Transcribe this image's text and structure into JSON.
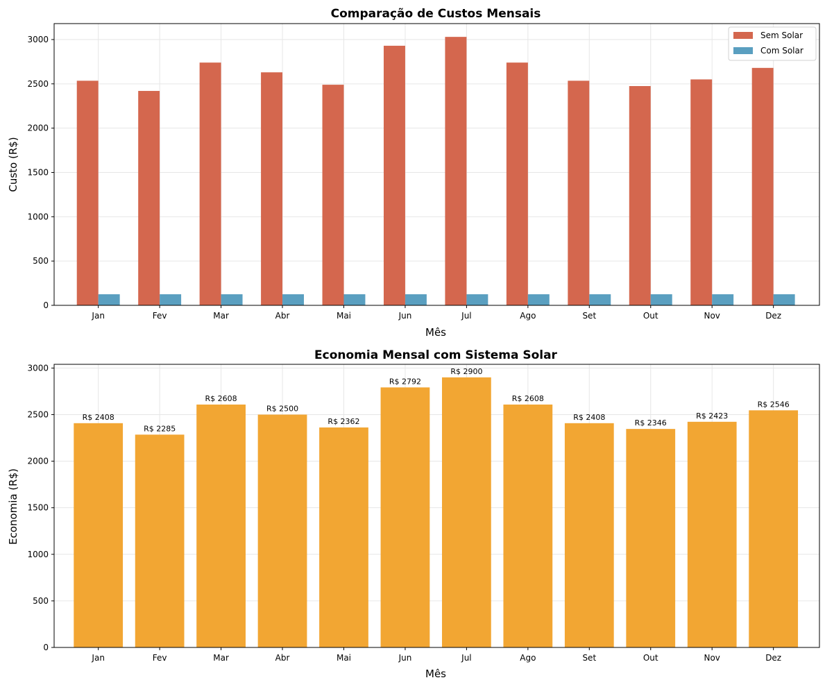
{
  "chart_data": [
    {
      "type": "bar",
      "title": "Comparação de Custos Mensais",
      "xlabel": "Mês",
      "ylabel": "Custo (R$)",
      "categories": [
        "Jan",
        "Fev",
        "Mar",
        "Abr",
        "Mai",
        "Jun",
        "Jul",
        "Ago",
        "Set",
        "Out",
        "Nov",
        "Dez"
      ],
      "series": [
        {
          "name": "Sem Solar",
          "color": "#d4674e",
          "values": [
            2535,
            2420,
            2740,
            2630,
            2490,
            2930,
            3030,
            2740,
            2535,
            2475,
            2550,
            2680
          ]
        },
        {
          "name": "Com Solar",
          "color": "#5a9fc0",
          "values": [
            125,
            125,
            125,
            125,
            125,
            125,
            125,
            125,
            125,
            125,
            125,
            125
          ]
        }
      ],
      "ylim": [
        0,
        3180
      ],
      "yticks": [
        0,
        500,
        1000,
        1500,
        2000,
        2500,
        3000
      ],
      "grid": true,
      "legend": "top-right"
    },
    {
      "type": "bar",
      "title": "Economia Mensal com Sistema Solar",
      "xlabel": "Mês",
      "ylabel": "Economia (R$)",
      "categories": [
        "Jan",
        "Fev",
        "Mar",
        "Abr",
        "Mai",
        "Jun",
        "Jul",
        "Ago",
        "Set",
        "Out",
        "Nov",
        "Dez"
      ],
      "series": [
        {
          "name": "",
          "color": "#f2a633",
          "values": [
            2408,
            2285,
            2608,
            2500,
            2362,
            2792,
            2900,
            2608,
            2408,
            2346,
            2423,
            2546
          ]
        }
      ],
      "data_labels": [
        "R$ 2408",
        "R$ 2285",
        "R$ 2608",
        "R$ 2500",
        "R$ 2362",
        "R$ 2792",
        "R$ 2900",
        "R$ 2608",
        "R$ 2408",
        "R$ 2346",
        "R$ 2423",
        "R$ 2546"
      ],
      "ylim": [
        0,
        3040
      ],
      "yticks": [
        0,
        500,
        1000,
        1500,
        2000,
        2500,
        3000
      ],
      "grid": true
    }
  ]
}
